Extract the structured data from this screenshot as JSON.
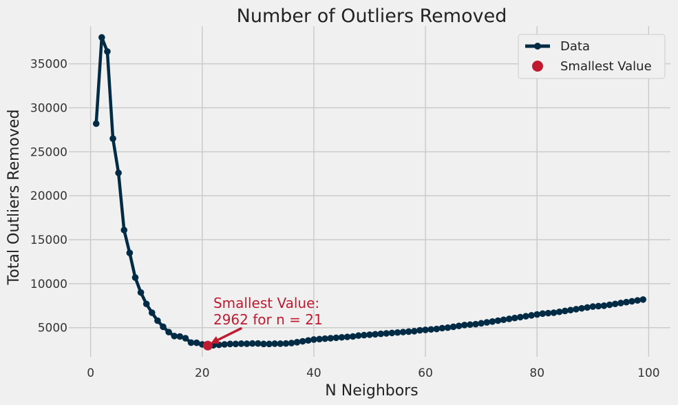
{
  "chart_data": {
    "type": "line",
    "title": "Number of Outliers Removed",
    "xlabel": "N Neighbors",
    "ylabel": "Total Outliers Removed",
    "xlim": [
      -3.9,
      103.9
    ],
    "ylim": [
      1690,
      39280
    ],
    "xticks": [
      0,
      20,
      40,
      60,
      80,
      100
    ],
    "yticks": [
      5000,
      10000,
      15000,
      20000,
      25000,
      30000,
      35000
    ],
    "grid": true,
    "legend_position": "top-right",
    "colors": {
      "series": "#002b45",
      "highlight": "#bf1a2f",
      "background": "#f0f0f0",
      "grid": "#cbcbcb"
    },
    "series": [
      {
        "name": "Data",
        "x": [
          1,
          2,
          3,
          4,
          5,
          6,
          7,
          8,
          9,
          10,
          11,
          12,
          13,
          14,
          15,
          16,
          17,
          18,
          19,
          20,
          21,
          22,
          23,
          24,
          25,
          26,
          27,
          28,
          29,
          30,
          31,
          32,
          33,
          34,
          35,
          36,
          37,
          38,
          39,
          40,
          41,
          42,
          43,
          44,
          45,
          46,
          47,
          48,
          49,
          50,
          51,
          52,
          53,
          54,
          55,
          56,
          57,
          58,
          59,
          60,
          61,
          62,
          63,
          64,
          65,
          66,
          67,
          68,
          69,
          70,
          71,
          72,
          73,
          74,
          75,
          76,
          77,
          78,
          79,
          80,
          81,
          82,
          83,
          84,
          85,
          86,
          87,
          88,
          89,
          90,
          91,
          92,
          93,
          94,
          95,
          96,
          97,
          98,
          99
        ],
        "values": [
          28200,
          38000,
          36400,
          26500,
          22600,
          16100,
          13500,
          10700,
          9000,
          7700,
          6700,
          5800,
          5100,
          4500,
          4050,
          4000,
          3800,
          3300,
          3280,
          3100,
          2962,
          3000,
          3050,
          3100,
          3150,
          3150,
          3180,
          3170,
          3200,
          3200,
          3150,
          3150,
          3180,
          3180,
          3200,
          3250,
          3350,
          3450,
          3550,
          3650,
          3700,
          3750,
          3800,
          3850,
          3900,
          3950,
          4000,
          4100,
          4150,
          4200,
          4250,
          4300,
          4350,
          4400,
          4450,
          4500,
          4550,
          4600,
          4700,
          4750,
          4800,
          4850,
          4950,
          5000,
          5100,
          5200,
          5300,
          5350,
          5400,
          5500,
          5600,
          5700,
          5800,
          5900,
          6000,
          6100,
          6200,
          6300,
          6400,
          6500,
          6600,
          6650,
          6700,
          6800,
          6900,
          7000,
          7100,
          7200,
          7300,
          7400,
          7450,
          7500,
          7600,
          7700,
          7800,
          7900,
          8000,
          8100,
          8200
        ]
      }
    ],
    "highlight": {
      "name": "Smallest Value",
      "x": 21,
      "y": 2962
    },
    "annotation": {
      "line1": "Smallest Value:",
      "line2": "2962 for n = 21",
      "text_x": 22,
      "text_y": 6000
    },
    "legend": {
      "series_label": "Data",
      "highlight_label": "Smallest Value"
    }
  }
}
